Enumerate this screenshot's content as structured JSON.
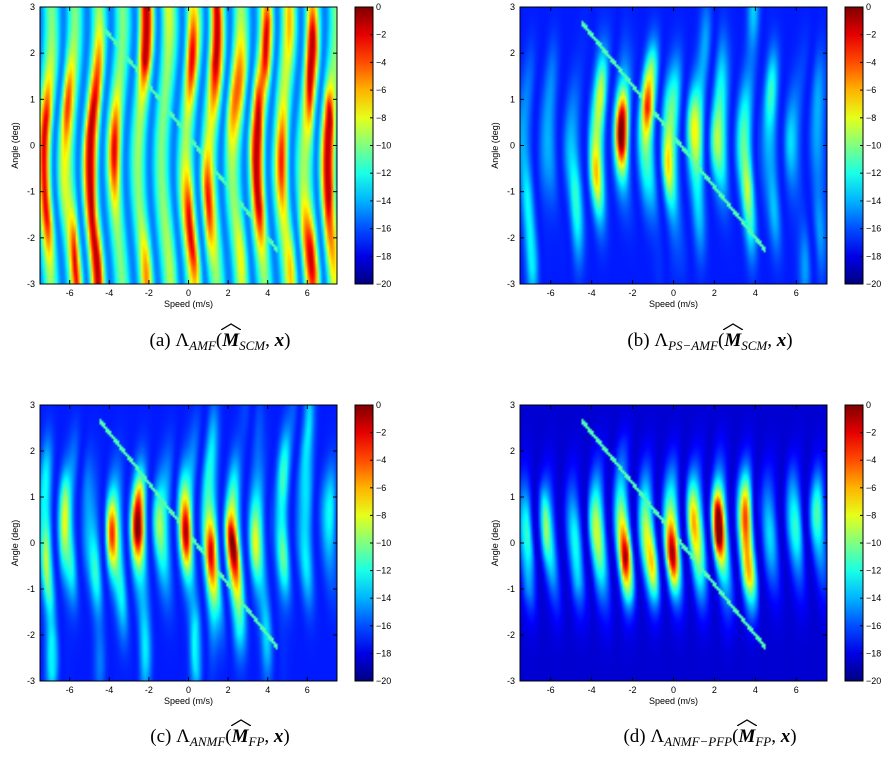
{
  "figure": {
    "colormap": "jet",
    "panels": [
      {
        "id": "a",
        "caption_prefix": "(a)",
        "caption_lambda": "Λ",
        "caption_sub": "AMF",
        "caption_matrix": "M",
        "caption_matrix_sub": "SCM",
        "caption_vec": "x",
        "style": "noisy"
      },
      {
        "id": "b",
        "caption_prefix": "(b)",
        "caption_lambda": "Λ",
        "caption_sub": "PS−AMF",
        "caption_matrix": "M",
        "caption_matrix_sub": "SCM",
        "caption_vec": "x",
        "style": "medium"
      },
      {
        "id": "c",
        "caption_prefix": "(c)",
        "caption_lambda": "Λ",
        "caption_sub": "ANMF",
        "caption_matrix": "M",
        "caption_matrix_sub": "FP",
        "caption_vec": "x",
        "style": "medium2"
      },
      {
        "id": "d",
        "caption_prefix": "(d)",
        "caption_lambda": "Λ",
        "caption_sub": "ANMF−PFP",
        "caption_matrix": "M",
        "caption_matrix_sub": "FP",
        "caption_vec": "x",
        "style": "clean"
      }
    ]
  },
  "chart_data": [
    {
      "type": "heatmap",
      "title": "",
      "xlabel": "Speed (m/s)",
      "ylabel": "Angle (deg)",
      "xlim": [
        -7.5,
        7.5
      ],
      "ylim": [
        -3,
        3
      ],
      "xticks": [
        -6,
        -4,
        -2,
        0,
        2,
        4,
        6
      ],
      "yticks": [
        -3,
        -2,
        -1,
        0,
        1,
        2,
        3
      ],
      "colorbar": {
        "range": [
          -20,
          0
        ],
        "ticks": [
          0,
          -2,
          -4,
          -6,
          -8,
          -10,
          -12,
          -14,
          -16,
          -18,
          -20
        ]
      },
      "legend": "none"
    },
    {
      "type": "heatmap",
      "title": "",
      "xlabel": "Speed (m/s)",
      "ylabel": "Angle (deg)",
      "xlim": [
        -7.5,
        7.5
      ],
      "ylim": [
        -3,
        3
      ],
      "xticks": [
        -6,
        -4,
        -2,
        0,
        2,
        4,
        6
      ],
      "yticks": [
        -3,
        -2,
        -1,
        0,
        1,
        2,
        3
      ],
      "colorbar": {
        "range": [
          -20,
          0
        ],
        "ticks": [
          0,
          -2,
          -4,
          -6,
          -8,
          -10,
          -12,
          -14,
          -16,
          -18,
          -20
        ]
      },
      "legend": "none"
    },
    {
      "type": "heatmap",
      "title": "",
      "xlabel": "Speed (m/s)",
      "ylabel": "Angle (deg)",
      "xlim": [
        -7.5,
        7.5
      ],
      "ylim": [
        -3,
        3
      ],
      "xticks": [
        -6,
        -4,
        -2,
        0,
        2,
        4,
        6
      ],
      "yticks": [
        -3,
        -2,
        -1,
        0,
        1,
        2,
        3
      ],
      "colorbar": {
        "range": [
          -20,
          0
        ],
        "ticks": [
          0,
          -2,
          -4,
          -6,
          -8,
          -10,
          -12,
          -14,
          -16,
          -18,
          -20
        ]
      },
      "legend": "none"
    },
    {
      "type": "heatmap",
      "title": "",
      "xlabel": "Speed (m/s)",
      "ylabel": "Angle (deg)",
      "xlim": [
        -7.5,
        7.5
      ],
      "ylim": [
        -3,
        3
      ],
      "xticks": [
        -6,
        -4,
        -2,
        0,
        2,
        4,
        6
      ],
      "yticks": [
        -3,
        -2,
        -1,
        0,
        1,
        2,
        3
      ],
      "colorbar": {
        "range": [
          -20,
          0
        ],
        "ticks": [
          0,
          -2,
          -4,
          -6,
          -8,
          -10,
          -12,
          -14,
          -16,
          -18,
          -20
        ]
      },
      "legend": "none"
    }
  ]
}
